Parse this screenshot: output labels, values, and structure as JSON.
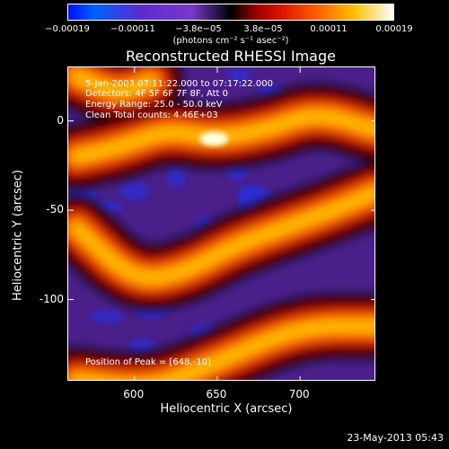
{
  "colorbar": {
    "ticks": [
      "−0.00019",
      "−0.00011",
      "−3.8e−05",
      "3.8e−05",
      "0.00011",
      "0.00019"
    ],
    "unit_label": "(photons cm⁻² s⁻¹ asec⁻²)"
  },
  "annotations": {
    "time_range": "5-Jan-2003 07:11:22.000 to 07:17:22.000",
    "detectors": "Detectors: 4F 5F 6F 7F 8F, Att 0",
    "energy": "Energy Range: 25.0 - 50.0 keV",
    "clean": "Clean    Total counts: 4.46E+03",
    "peak": "Position of Peak = [648,-10]"
  },
  "timestamp": "23-May-2013 05:43",
  "chart_data": {
    "type": "heatmap",
    "title": "Reconstructed RHESSI Image",
    "xlabel": "Heliocentric X (arcsec)",
    "ylabel": "Heliocentric Y (arcsec)",
    "xlim": [
      560,
      746
    ],
    "ylim": [
      -146,
      30
    ],
    "x_ticks": [
      600,
      650,
      700
    ],
    "y_ticks": [
      0,
      -50,
      -100
    ],
    "colorbar_range": [
      -0.00019,
      0.00019
    ],
    "peak": [
      648,
      -10
    ],
    "bands": [
      {
        "kind": "positive",
        "points": [
          [
            565,
            -20
          ],
          [
            590,
            -15
          ],
          [
            620,
            -5
          ],
          [
            648,
            -10
          ],
          [
            680,
            -5
          ],
          [
            710,
            5
          ],
          [
            746,
            -5
          ]
        ]
      },
      {
        "kind": "positive",
        "points": [
          [
            565,
            -60
          ],
          [
            600,
            -90
          ],
          [
            630,
            -85
          ],
          [
            660,
            -70
          ],
          [
            690,
            -60
          ],
          [
            720,
            -50
          ],
          [
            746,
            -40
          ]
        ]
      },
      {
        "kind": "positive",
        "points": [
          [
            565,
            -145
          ],
          [
            610,
            -150
          ],
          [
            650,
            -135
          ],
          [
            700,
            -115
          ],
          [
            746,
            -115
          ]
        ]
      },
      {
        "kind": "positive",
        "points": [
          [
            565,
            25
          ],
          [
            590,
            15
          ],
          [
            610,
            22
          ]
        ]
      }
    ]
  }
}
